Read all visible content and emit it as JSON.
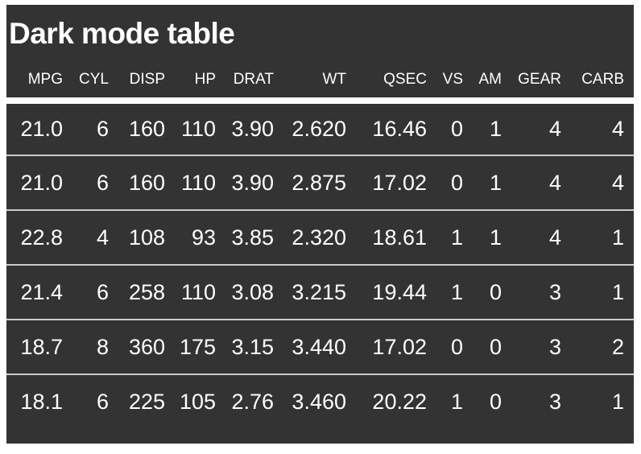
{
  "page_title": "Dark mode table",
  "colors": {
    "page_background": "#ffffff",
    "table_background": "#333333",
    "text": "#ffffff",
    "row_separator": "#cccccc",
    "header_separator_band": "#ffffff"
  },
  "chart_data": {
    "type": "table",
    "title": "Dark mode table",
    "columns": [
      "MPG",
      "CYL",
      "DISP",
      "HP",
      "DRAT",
      "WT",
      "QSEC",
      "VS",
      "AM",
      "GEAR",
      "CARB"
    ],
    "rows": [
      [
        "21.0",
        "6",
        "160",
        "110",
        "3.90",
        "2.620",
        "16.46",
        "0",
        "1",
        "4",
        "4"
      ],
      [
        "21.0",
        "6",
        "160",
        "110",
        "3.90",
        "2.875",
        "17.02",
        "0",
        "1",
        "4",
        "4"
      ],
      [
        "22.8",
        "4",
        "108",
        "93",
        "3.85",
        "2.320",
        "18.61",
        "1",
        "1",
        "4",
        "1"
      ],
      [
        "21.4",
        "6",
        "258",
        "110",
        "3.08",
        "3.215",
        "19.44",
        "1",
        "0",
        "3",
        "1"
      ],
      [
        "18.7",
        "8",
        "360",
        "175",
        "3.15",
        "3.440",
        "17.02",
        "0",
        "0",
        "3",
        "2"
      ],
      [
        "18.1",
        "6",
        "225",
        "105",
        "2.76",
        "3.460",
        "20.22",
        "1",
        "0",
        "3",
        "1"
      ]
    ]
  }
}
